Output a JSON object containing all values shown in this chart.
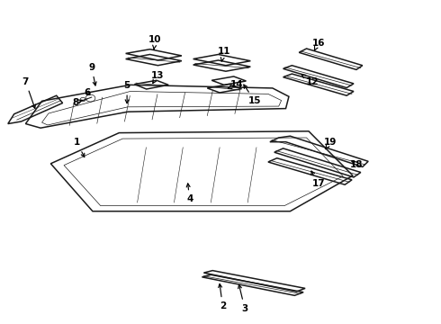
{
  "bg_color": "#ffffff",
  "line_color": "#1a1a1a",
  "text_color": "#000000",
  "annotations": [
    [
      "1",
      [
        0.175,
        0.56
      ],
      [
        0.195,
        0.505
      ]
    ],
    [
      "2",
      [
        0.505,
        0.055
      ],
      [
        0.497,
        0.135
      ]
    ],
    [
      "3",
      [
        0.555,
        0.048
      ],
      [
        0.54,
        0.132
      ]
    ],
    [
      "4",
      [
        0.43,
        0.385
      ],
      [
        0.425,
        0.445
      ]
    ],
    [
      "5",
      [
        0.288,
        0.735
      ],
      [
        0.288,
        0.67
      ]
    ],
    [
      "6",
      [
        0.198,
        0.715
      ],
      [
        0.21,
        0.7
      ]
    ],
    [
      "7",
      [
        0.058,
        0.748
      ],
      [
        0.082,
        0.655
      ]
    ],
    [
      "8",
      [
        0.172,
        0.683
      ],
      [
        0.188,
        0.692
      ]
    ],
    [
      "9",
      [
        0.208,
        0.792
      ],
      [
        0.218,
        0.725
      ]
    ],
    [
      "10",
      [
        0.352,
        0.878
      ],
      [
        0.348,
        0.838
      ]
    ],
    [
      "11",
      [
        0.508,
        0.842
      ],
      [
        0.502,
        0.808
      ]
    ],
    [
      "12",
      [
        0.708,
        0.748
      ],
      [
        0.682,
        0.772
      ]
    ],
    [
      "13",
      [
        0.358,
        0.768
      ],
      [
        0.345,
        0.74
      ]
    ],
    [
      "14",
      [
        0.538,
        0.738
      ],
      [
        0.515,
        0.726
      ]
    ],
    [
      "15",
      [
        0.578,
        0.688
      ],
      [
        0.548,
        0.748
      ]
    ],
    [
      "16",
      [
        0.722,
        0.868
      ],
      [
        0.712,
        0.842
      ]
    ],
    [
      "17",
      [
        0.722,
        0.432
      ],
      [
        0.702,
        0.482
      ]
    ],
    [
      "18",
      [
        0.808,
        0.492
      ],
      [
        0.792,
        0.512
      ]
    ],
    [
      "19",
      [
        0.748,
        0.562
      ],
      [
        0.738,
        0.538
      ]
    ]
  ]
}
